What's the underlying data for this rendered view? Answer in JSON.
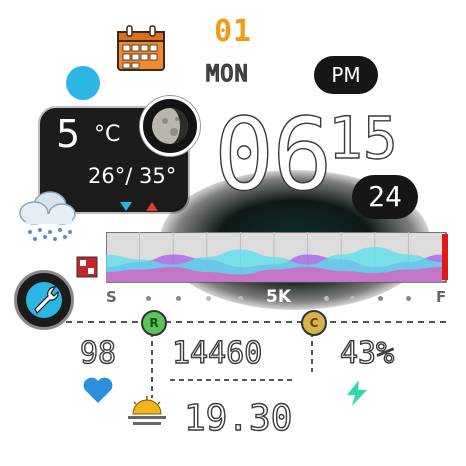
{
  "date": {
    "day": "01",
    "weekday": "MON"
  },
  "ampm": "PM",
  "weather": {
    "temp_now": "5",
    "temp_unit": "°C",
    "temp_range": "26°/ 35°"
  },
  "time": {
    "hours": "06",
    "minutes": "15",
    "seconds": "24"
  },
  "chart_data": {
    "type": "area",
    "title": "",
    "start_label": "S",
    "end_label": "F",
    "center_label": "5K",
    "series": [
      {
        "name": "purple",
        "color": "#a45be8",
        "values": [
          0.3,
          0.4,
          0.55,
          0.45,
          0.3,
          0.35,
          0.55,
          0.45,
          0.3,
          0.4,
          0.55
        ]
      },
      {
        "name": "cyan",
        "color": "#55e0e8",
        "values": [
          0.55,
          0.45,
          0.35,
          0.5,
          0.65,
          0.5,
          0.35,
          0.55,
          0.7,
          0.55,
          0.4
        ]
      },
      {
        "name": "magenta",
        "color": "#e05bbd",
        "values": [
          0.2,
          0.25,
          0.3,
          0.2,
          0.15,
          0.25,
          0.3,
          0.22,
          0.18,
          0.25,
          0.3
        ]
      }
    ],
    "ylim": [
      0,
      1
    ]
  },
  "stats": {
    "heart_rate": "98",
    "steps": "14460",
    "battery": "43%",
    "sunset": "19.30",
    "pin_left": "R",
    "pin_right": "C"
  },
  "colors": {
    "accent_orange": "#f29a12",
    "blue": "#2bb6e6",
    "heart": "#2b8fe0",
    "bolt": "#2fd9b0",
    "sun": "#f2b31d",
    "pin_green": "#5ec25a",
    "pin_gold": "#d7b24a",
    "red_end": "#e01818"
  }
}
